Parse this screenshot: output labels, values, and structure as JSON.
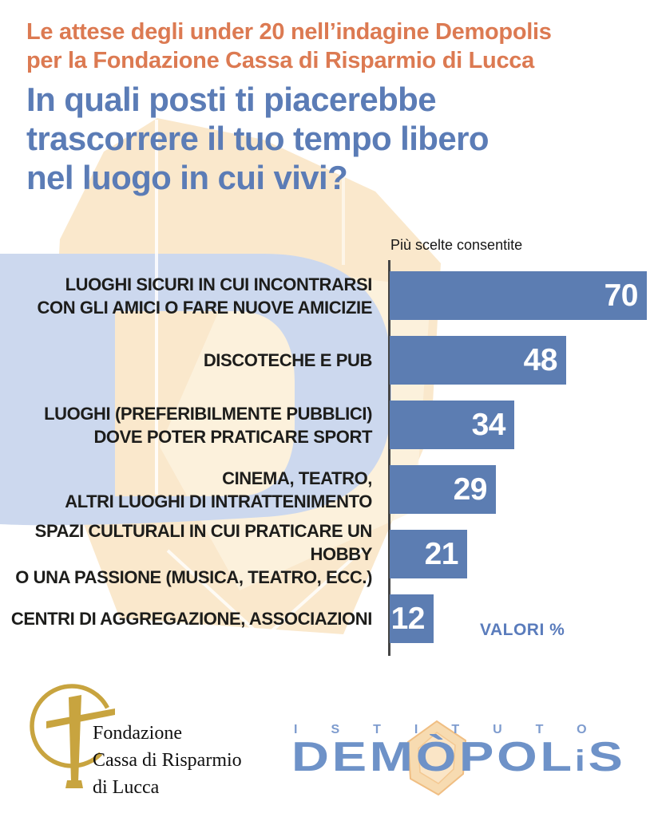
{
  "header": {
    "kicker_line1": "Le attese degli under 20 nell’indagine Demopolis",
    "kicker_line2": "per la Fondazione Cassa di Risparmio di Lucca",
    "title_line1": "In quali posti ti piacerebbe",
    "title_line2": "trascorrere il tuo tempo libero",
    "title_line3": "nel luogo in cui vivi?"
  },
  "chart_data": {
    "type": "bar",
    "orientation": "horizontal",
    "note": "Più scelte consentite",
    "units_label": "VALORI %",
    "categories": [
      "LUOGHI SICURI IN CUI INCONTRARSI\nCON GLI AMICI O FARE NUOVE AMICIZIE",
      "DISCOTECHE E PUB",
      "LUOGHI (PREFERIBILMENTE PUBBLICI)\nDOVE POTER PRATICARE SPORT",
      "CINEMA, TEATRO,\nALTRI LUOGHI DI INTRATTENIMENTO",
      "SPAZI CULTURALI IN CUI PRATICARE UN HOBBY\nO UNA PASSIONE (MUSICA, TEATRO, ECC.)",
      "CENTRI DI AGGREGAZIONE, ASSOCIAZIONI"
    ],
    "values": [
      70,
      48,
      34,
      29,
      21,
      12
    ],
    "xlim": [
      0,
      70
    ],
    "grid": false,
    "legend": false,
    "bar_color": "#5c7db2",
    "value_label_color": "#ffffff"
  },
  "footer": {
    "fondazione": {
      "line1": "Fondazione",
      "line2": "Cassa di Risparmio",
      "line3": "di Lucca"
    },
    "demopolis": {
      "istituto": "ISTITUTO",
      "name_part1": "DEMÒPOL",
      "name_part2": "i",
      "name_part3": "S"
    }
  },
  "colors": {
    "kicker_orange": "#dc7a52",
    "title_blue": "#5b7cb6",
    "bar_blue": "#5c7db2",
    "axis_gray": "#454545",
    "watermark_blue": "#ccd8ee",
    "watermark_peach": "#fae8cc",
    "logo_gold": "#c8a43f",
    "demopolis_blue": "#6e92c8"
  }
}
